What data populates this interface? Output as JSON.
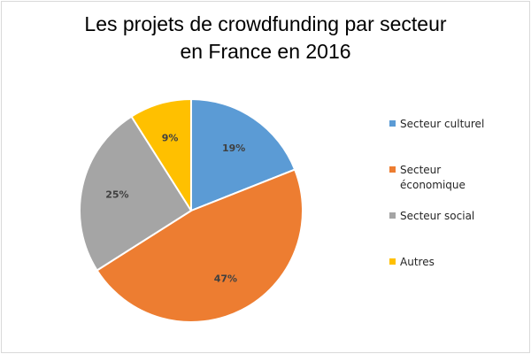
{
  "chart_data": {
    "type": "pie",
    "title_lines": [
      "Les projets de crowdfunding par secteur",
      "en France en 2016"
    ],
    "categories": [
      "Secteur culturel",
      "Secteur économique",
      "Secteur social",
      "Autres"
    ],
    "values": [
      19,
      47,
      25,
      9
    ],
    "labels": [
      "19%",
      "47%",
      "25%",
      "9%"
    ],
    "colors": [
      "#5b9bd5",
      "#ed7d31",
      "#a5a5a5",
      "#ffc000"
    ],
    "legend_position": "right",
    "start_angle": "12 o'clock, clockwise"
  }
}
